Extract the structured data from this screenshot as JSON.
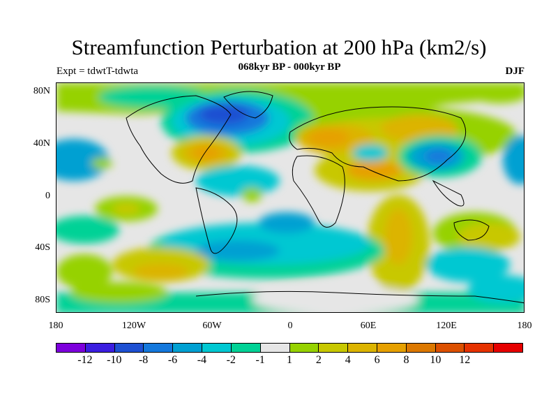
{
  "title": "Streamfunction Perturbation at 200 hPa (km2/s)",
  "subtitle": "068kyr BP - 000kyr BP",
  "left_label": "Expt = tdwtT-tdwta",
  "right_label": "DJF",
  "map": {
    "lat_labels": [
      "80N",
      "40N",
      "0",
      "40S",
      "80S"
    ],
    "lon_labels": [
      "180",
      "120W",
      "60W",
      "0",
      "60E",
      "120E",
      "180"
    ]
  },
  "colorbar": {
    "colors": [
      "#7d00dc",
      "#3b1ee0",
      "#1e50d2",
      "#1478dc",
      "#00a0d2",
      "#00c8d2",
      "#00d296",
      "#e6e6e6",
      "#96d200",
      "#c8c800",
      "#dcb400",
      "#e6a000",
      "#dc7800",
      "#dc5000",
      "#e63200",
      "#e60000"
    ],
    "labels": [
      "-12",
      "-10",
      "-8",
      "-6",
      "-4",
      "-2",
      "-1",
      "1",
      "2",
      "4",
      "6",
      "8",
      "10",
      "12"
    ]
  }
}
